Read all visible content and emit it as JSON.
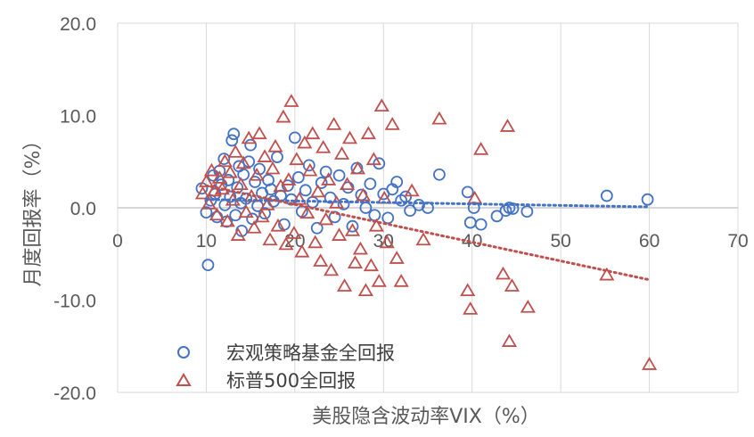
{
  "chart_data": {
    "type": "scatter",
    "title": "",
    "xlabel": "美股隐含波动率VIX（%）",
    "ylabel": "月度回报率（%）",
    "xlim": [
      0,
      70
    ],
    "ylim": [
      -20,
      20
    ],
    "x_ticks": [
      "0",
      "10",
      "20",
      "30",
      "40",
      "50",
      "60",
      "70"
    ],
    "y_ticks": [
      "20.0",
      "10.0",
      "0.0",
      "-10.0",
      "-20.0"
    ],
    "grid": "vertical",
    "legend": "bottom-left",
    "series": [
      {
        "name": "宏观策略基金全回报",
        "marker": "circle",
        "color": "#4472C4",
        "trendline": {
          "style": "dotted",
          "x0": 10,
          "y0": 0.9,
          "x1": 60,
          "y1": 0.1
        },
        "points": [
          [
            9.5,
            2.1
          ],
          [
            10.0,
            -0.5
          ],
          [
            10.2,
            -6.2
          ],
          [
            10.5,
            0.8
          ],
          [
            10.8,
            3.5
          ],
          [
            11.0,
            1.5
          ],
          [
            11.2,
            -1.0
          ],
          [
            11.5,
            4.0
          ],
          [
            11.7,
            2.5
          ],
          [
            12.0,
            5.3
          ],
          [
            12.1,
            0.3
          ],
          [
            12.3,
            -1.5
          ],
          [
            12.5,
            3.0
          ],
          [
            12.7,
            1.2
          ],
          [
            12.9,
            7.3
          ],
          [
            13.1,
            8.0
          ],
          [
            13.3,
            -0.8
          ],
          [
            13.5,
            2.2
          ],
          [
            13.7,
            4.5
          ],
          [
            13.9,
            0.5
          ],
          [
            14.0,
            -2.5
          ],
          [
            14.2,
            3.6
          ],
          [
            14.5,
            1.0
          ],
          [
            14.8,
            5.0
          ],
          [
            15.0,
            6.8
          ],
          [
            15.2,
            -1.2
          ],
          [
            15.5,
            2.8
          ],
          [
            15.8,
            0.2
          ],
          [
            16.0,
            4.2
          ],
          [
            16.3,
            1.6
          ],
          [
            16.6,
            -0.6
          ],
          [
            17.0,
            3.0
          ],
          [
            17.3,
            2.0
          ],
          [
            17.6,
            0.7
          ],
          [
            18.0,
            5.5
          ],
          [
            18.4,
            1.3
          ],
          [
            18.8,
            -1.8
          ],
          [
            19.2,
            2.4
          ],
          [
            19.6,
            0.9
          ],
          [
            20.0,
            7.6
          ],
          [
            20.4,
            3.3
          ],
          [
            20.8,
            -0.4
          ],
          [
            21.2,
            1.9
          ],
          [
            21.6,
            4.6
          ],
          [
            22.0,
            0.6
          ],
          [
            22.5,
            -2.2
          ],
          [
            23.0,
            2.7
          ],
          [
            23.5,
            3.9
          ],
          [
            24.0,
            1.1
          ],
          [
            24.5,
            -1.0
          ],
          [
            25.0,
            3.5
          ],
          [
            25.5,
            0.4
          ],
          [
            26.0,
            2.2
          ],
          [
            26.5,
            -2.0
          ],
          [
            27.0,
            4.3
          ],
          [
            27.5,
            1.4
          ],
          [
            28.0,
            0.0
          ],
          [
            28.5,
            2.6
          ],
          [
            29.0,
            -0.8
          ],
          [
            29.5,
            4.8
          ],
          [
            30.0,
            1.5
          ],
          [
            30.5,
            -1.1
          ],
          [
            31.0,
            2.0
          ],
          [
            31.5,
            2.8
          ],
          [
            32.0,
            0.8
          ],
          [
            32.5,
            1.2
          ],
          [
            33.0,
            -0.3
          ],
          [
            34.0,
            0.3
          ],
          [
            35.0,
            0.0
          ],
          [
            36.3,
            3.6
          ],
          [
            39.5,
            1.7
          ],
          [
            39.8,
            -1.6
          ],
          [
            40.2,
            0.0
          ],
          [
            41.0,
            -1.8
          ],
          [
            42.8,
            -0.9
          ],
          [
            43.8,
            -0.3
          ],
          [
            44.2,
            0.0
          ],
          [
            44.6,
            -0.1
          ],
          [
            46.2,
            -0.4
          ],
          [
            55.2,
            1.3
          ],
          [
            59.8,
            0.9
          ]
        ]
      },
      {
        "name": "标普500全回报",
        "marker": "triangle",
        "color": "#C0504D",
        "trendline": {
          "style": "dotted",
          "x0": 10,
          "y0": 2.4,
          "x1": 60,
          "y1": -7.8
        },
        "points": [
          [
            9.6,
            1.5
          ],
          [
            10.0,
            2.8
          ],
          [
            10.3,
            0.4
          ],
          [
            10.6,
            4.0
          ],
          [
            10.9,
            1.8
          ],
          [
            11.2,
            -0.8
          ],
          [
            11.5,
            3.2
          ],
          [
            11.8,
            2.0
          ],
          [
            12.1,
            5.0
          ],
          [
            12.4,
            -1.5
          ],
          [
            12.7,
            3.8
          ],
          [
            13.0,
            0.8
          ],
          [
            13.3,
            6.0
          ],
          [
            13.6,
            -3.0
          ],
          [
            13.9,
            2.5
          ],
          [
            14.2,
            4.8
          ],
          [
            14.5,
            -0.5
          ],
          [
            14.8,
            7.5
          ],
          [
            15.1,
            1.2
          ],
          [
            15.4,
            -2.2
          ],
          [
            15.7,
            3.5
          ],
          [
            16.0,
            8.0
          ],
          [
            16.3,
            -1.0
          ],
          [
            16.6,
            5.5
          ],
          [
            16.9,
            0.3
          ],
          [
            17.2,
            -3.5
          ],
          [
            17.5,
            4.2
          ],
          [
            17.8,
            6.6
          ],
          [
            18.1,
            -2.0
          ],
          [
            18.4,
            2.3
          ],
          [
            18.7,
            9.8
          ],
          [
            19.0,
            -4.0
          ],
          [
            19.3,
            3.0
          ],
          [
            19.6,
            11.5
          ],
          [
            19.9,
            -2.8
          ],
          [
            20.2,
            5.2
          ],
          [
            20.5,
            0.9
          ],
          [
            20.8,
            -4.8
          ],
          [
            21.1,
            7.0
          ],
          [
            21.4,
            -0.6
          ],
          [
            21.7,
            4.0
          ],
          [
            22.0,
            8.0
          ],
          [
            22.3,
            -3.8
          ],
          [
            22.6,
            1.7
          ],
          [
            22.9,
            -5.8
          ],
          [
            23.2,
            6.5
          ],
          [
            23.5,
            -1.3
          ],
          [
            23.8,
            3.0
          ],
          [
            24.1,
            -6.8
          ],
          [
            24.4,
            9.0
          ],
          [
            24.7,
            0.5
          ],
          [
            25.0,
            -3.0
          ],
          [
            25.3,
            5.8
          ],
          [
            25.6,
            -8.5
          ],
          [
            25.9,
            2.5
          ],
          [
            26.2,
            7.5
          ],
          [
            26.5,
            -2.5
          ],
          [
            26.8,
            -6.0
          ],
          [
            27.1,
            4.2
          ],
          [
            27.4,
            -4.5
          ],
          [
            27.7,
            1.3
          ],
          [
            28.0,
            -9.0
          ],
          [
            28.3,
            8.0
          ],
          [
            28.6,
            -6.3
          ],
          [
            28.9,
            5.2
          ],
          [
            29.2,
            -2.0
          ],
          [
            29.5,
            -8.0
          ],
          [
            29.8,
            11.0
          ],
          [
            30.1,
            1.0
          ],
          [
            30.4,
            -3.8
          ],
          [
            31.0,
            9.0
          ],
          [
            31.5,
            -5.5
          ],
          [
            32.0,
            -8.0
          ],
          [
            33.2,
            1.8
          ],
          [
            34.5,
            -3.5
          ],
          [
            36.3,
            9.6
          ],
          [
            39.5,
            -9.0
          ],
          [
            39.8,
            -11.0
          ],
          [
            40.3,
            1.0
          ],
          [
            41.0,
            6.3
          ],
          [
            43.5,
            -7.2
          ],
          [
            44.0,
            8.8
          ],
          [
            44.2,
            -14.5
          ],
          [
            44.5,
            -8.5
          ],
          [
            46.3,
            -10.8
          ],
          [
            55.2,
            -7.3
          ],
          [
            60.0,
            -17.0
          ]
        ]
      }
    ]
  }
}
